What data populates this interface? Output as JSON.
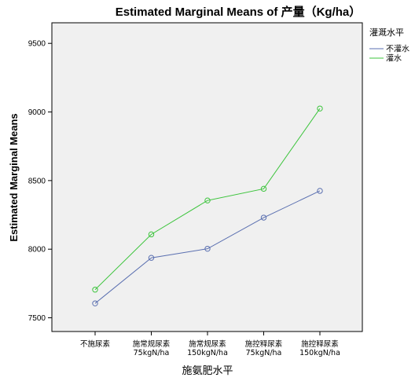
{
  "chart_data": {
    "type": "line",
    "title": "Estimated Marginal Means of 产量（Kg/ha）",
    "xlabel": "施氨肥水平",
    "ylabel": "Estimated Marginal Means",
    "categories": [
      {
        "line1": "不施尿素",
        "line2": ""
      },
      {
        "line1": "施常规尿素",
        "line2": "75kgN/ha"
      },
      {
        "line1": "施常规尿素",
        "line2": "150kgN/ha"
      },
      {
        "line1": "施控释尿素",
        "line2": "75kgN/ha"
      },
      {
        "line1": "施控释尿素",
        "line2": "150kgN/ha"
      }
    ],
    "ylim": [
      7400,
      9650
    ],
    "yticks": [
      "7500",
      "8000",
      "8500",
      "9000",
      "9500"
    ],
    "grid": false,
    "legend": {
      "title": "灌溉水平",
      "position": "right"
    },
    "series": [
      {
        "name": "不灌水",
        "color": "#5a6fb0",
        "values": [
          7605,
          7937,
          8003,
          8230,
          8425
        ]
      },
      {
        "name": "灌水",
        "color": "#3cc43c",
        "values": [
          7705,
          8108,
          8355,
          8440,
          9025
        ]
      }
    ]
  }
}
